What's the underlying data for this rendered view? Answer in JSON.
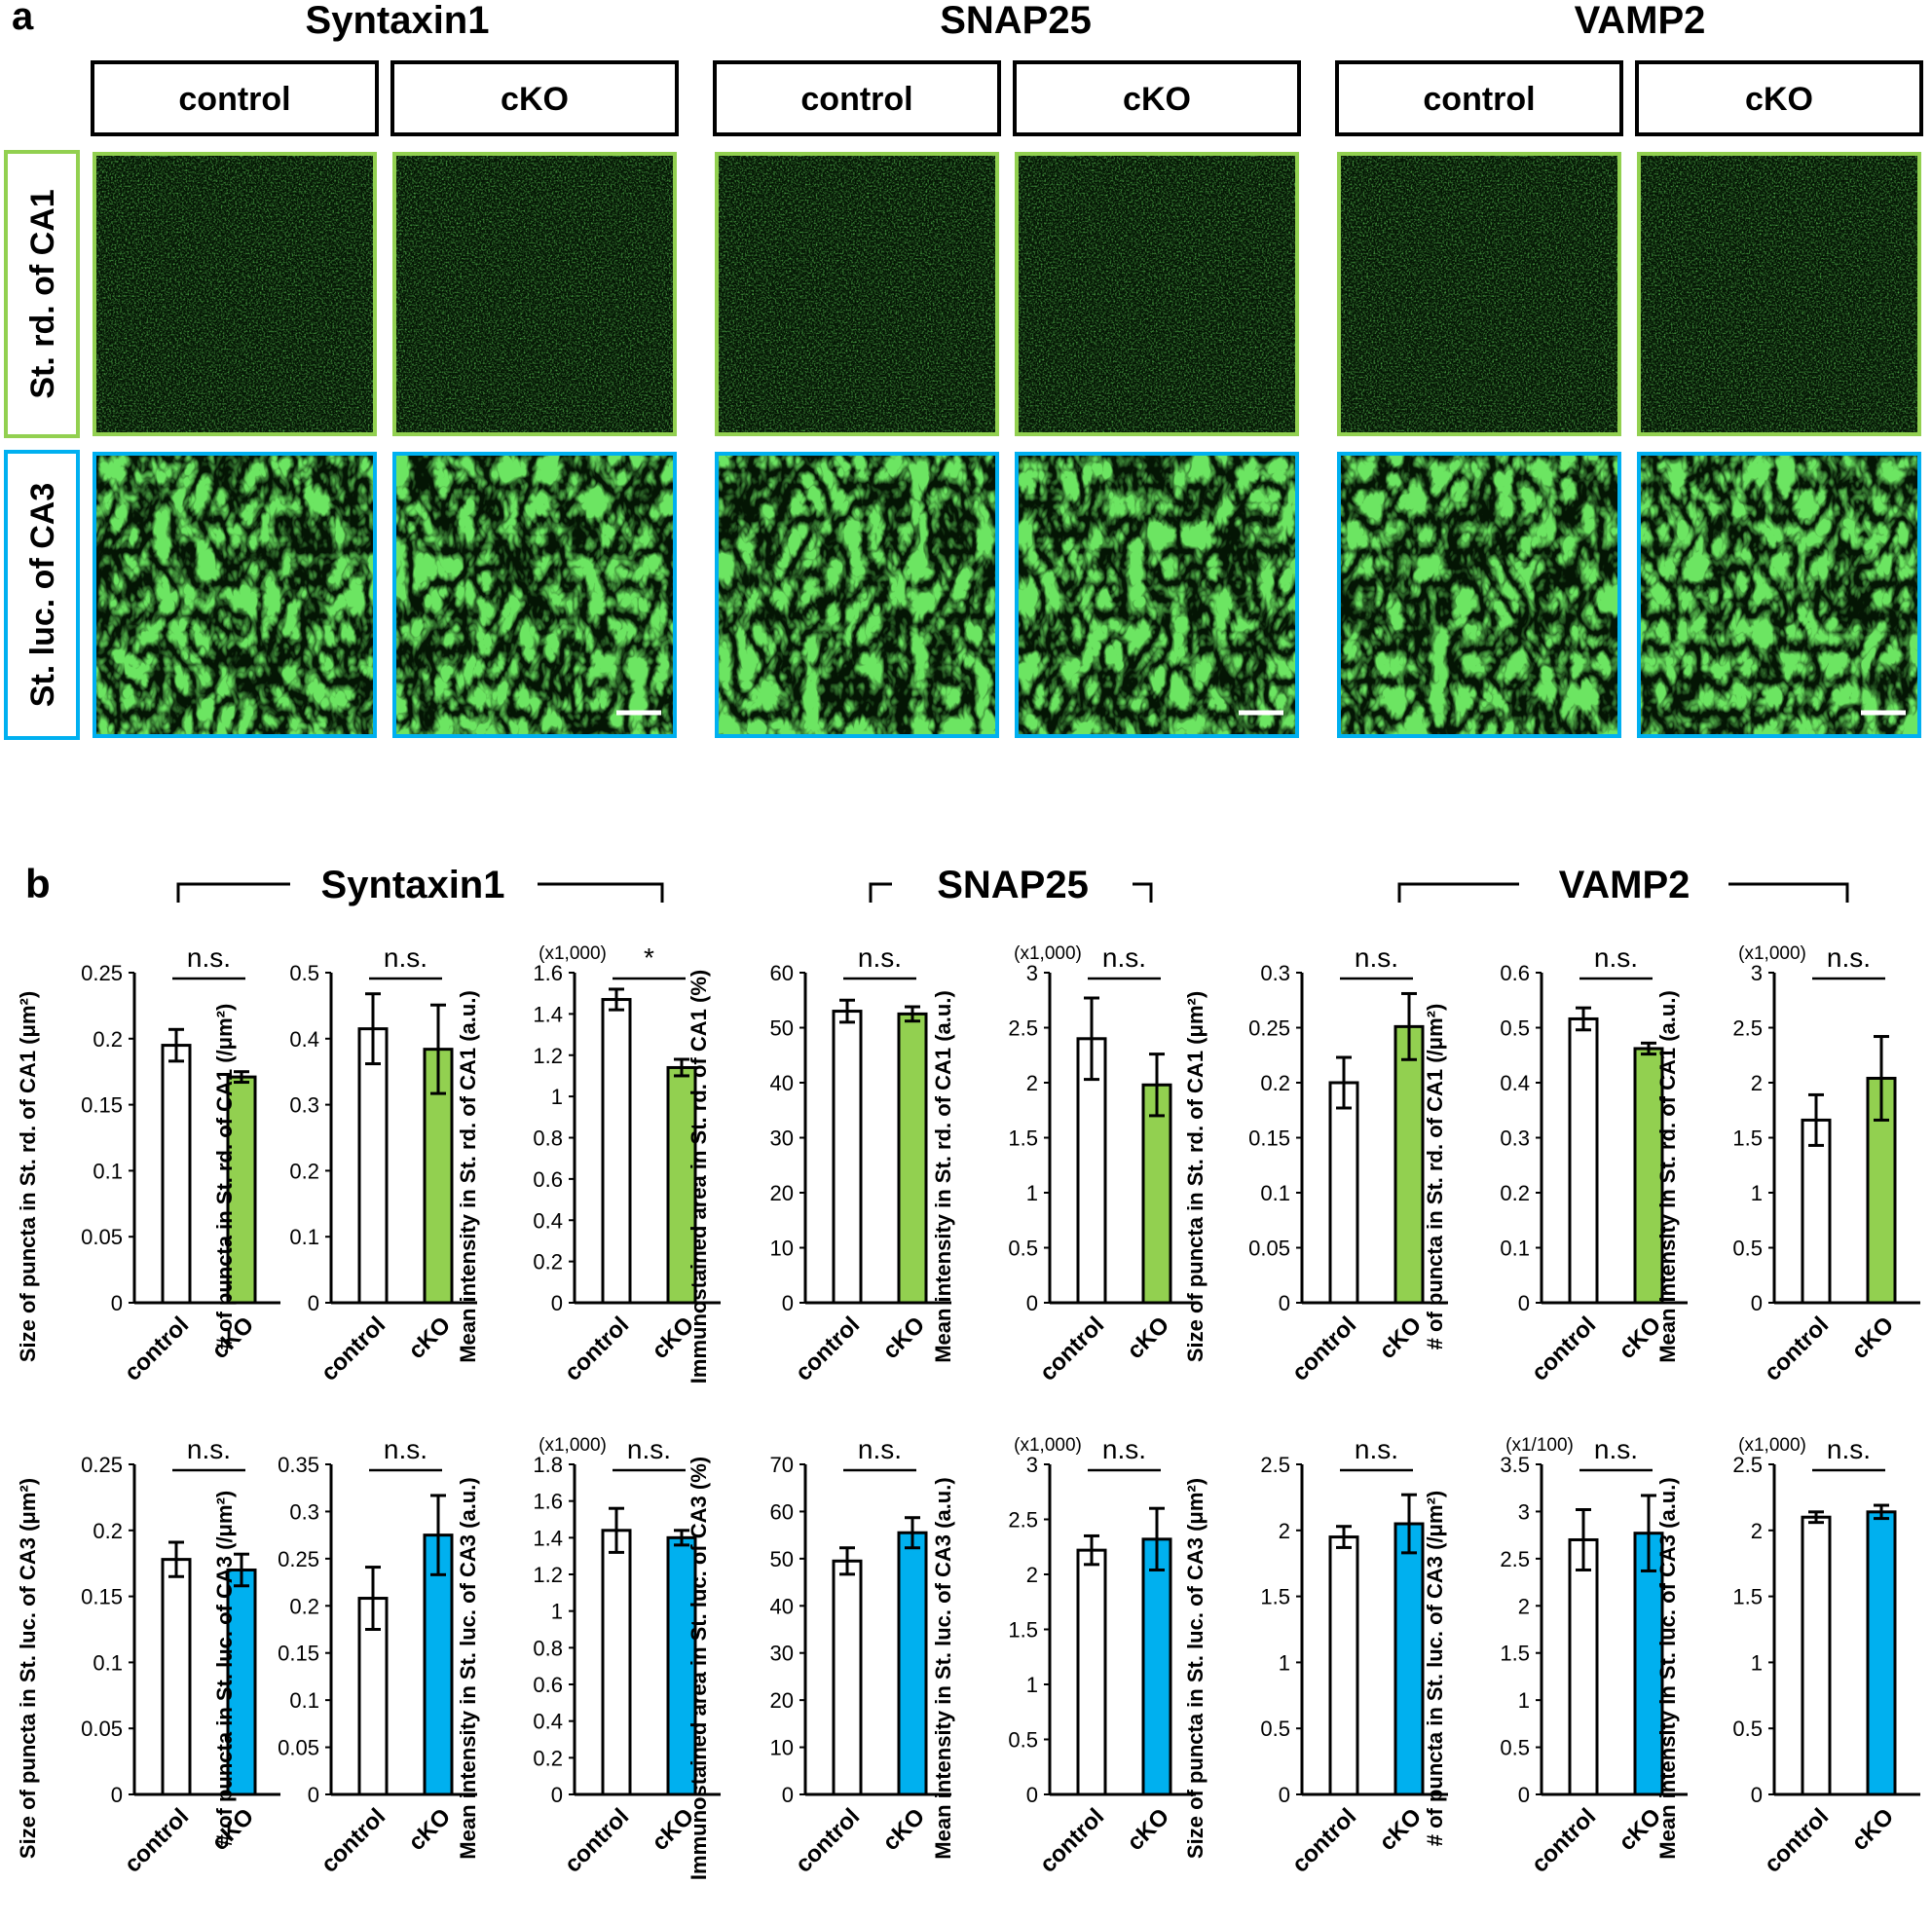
{
  "panel_a": {
    "label": "a",
    "groups": [
      {
        "title": "Syntaxin1",
        "conditions": [
          "control",
          "cKO"
        ]
      },
      {
        "title": "SNAP25",
        "conditions": [
          "control",
          "cKO"
        ]
      },
      {
        "title": "VAMP2",
        "conditions": [
          "control",
          "cKO"
        ]
      }
    ],
    "rows": [
      {
        "label": "St. rd. of CA1",
        "border_color": "#92d050"
      },
      {
        "label": "St. luc. of CA3",
        "border_color": "#00b0f0"
      }
    ],
    "image_color": "#1e8c1e"
  },
  "panel_b": {
    "label": "b",
    "groups": [
      "Syntaxin1",
      "SNAP25",
      "VAMP2"
    ]
  },
  "colors": {
    "control": "#ffffff",
    "ca1": "#92d050",
    "ca3": "#00b0ef"
  },
  "chart_data": [
    {
      "type": "bar",
      "categories": [
        "control",
        "cKO"
      ],
      "values": [
        0.195,
        0.171
      ],
      "errors": [
        0.012,
        0.004
      ],
      "ylabel": "Size of puncta in St. rd. of CA1 (μm²)",
      "ylim": [
        0,
        0.25
      ],
      "ticks": [
        "0",
        "0.05",
        "0.1",
        "0.15",
        "0.2",
        "0.25"
      ],
      "multiplier": "",
      "significance": "n.s.",
      "region": "CA1"
    },
    {
      "type": "bar",
      "categories": [
        "control",
        "cKO"
      ],
      "values": [
        0.415,
        0.384
      ],
      "errors": [
        0.053,
        0.067
      ],
      "ylabel": "# of puncta in St. rd. of CA1 (/μm²)",
      "ylim": [
        0,
        0.5
      ],
      "ticks": [
        "0",
        "0.1",
        "0.2",
        "0.3",
        "0.4",
        "0.5"
      ],
      "multiplier": "",
      "significance": "n.s.",
      "region": "CA1"
    },
    {
      "type": "bar",
      "categories": [
        "control",
        "cKO"
      ],
      "values": [
        1.47,
        1.14
      ],
      "errors": [
        0.05,
        0.04
      ],
      "ylabel": "Mean intensity in St. rd. of CA1 (a.u.)",
      "ylim": [
        0,
        1.6
      ],
      "ticks": [
        "0",
        "0.2",
        "0.4",
        "0.6",
        "0.8",
        "1",
        "1.2",
        "1.4",
        "1.6"
      ],
      "multiplier": "(x1,000)",
      "significance": "*",
      "region": "CA1"
    },
    {
      "type": "bar",
      "categories": [
        "control",
        "cKO"
      ],
      "values": [
        53,
        52.5
      ],
      "errors": [
        2,
        1.3
      ],
      "ylabel": "Immunostained area in St. rd. of CA1 (%)",
      "ylim": [
        0,
        60
      ],
      "ticks": [
        "0",
        "10",
        "20",
        "30",
        "40",
        "50",
        "60"
      ],
      "multiplier": "",
      "significance": "n.s.",
      "region": "CA1"
    },
    {
      "type": "bar",
      "categories": [
        "control",
        "cKO"
      ],
      "values": [
        2.4,
        1.98
      ],
      "errors": [
        0.37,
        0.28
      ],
      "ylabel": "Mean intensity in St. rd. of CA1 (a.u.)",
      "ylim": [
        0,
        3
      ],
      "ticks": [
        "0",
        "0.5",
        "1",
        "1.5",
        "2",
        "2.5",
        "3"
      ],
      "multiplier": "(x1,000)",
      "significance": "n.s.",
      "region": "CA1"
    },
    {
      "type": "bar",
      "categories": [
        "control",
        "cKO"
      ],
      "values": [
        0.2,
        0.251
      ],
      "errors": [
        0.023,
        0.03
      ],
      "ylabel": "Size of puncta in St. rd. of CA1 (μm²)",
      "ylim": [
        0,
        0.3
      ],
      "ticks": [
        "0",
        "0.05",
        "0.1",
        "0.15",
        "0.2",
        "0.25",
        "0.3"
      ],
      "multiplier": "",
      "significance": "n.s.",
      "region": "CA1"
    },
    {
      "type": "bar",
      "categories": [
        "control",
        "cKO"
      ],
      "values": [
        0.516,
        0.462
      ],
      "errors": [
        0.02,
        0.01
      ],
      "ylabel": "# of puncta in St. rd. of CA1 (/μm²)",
      "ylim": [
        0,
        0.6
      ],
      "ticks": [
        "0",
        "0.1",
        "0.2",
        "0.3",
        "0.4",
        "0.5",
        "0.6"
      ],
      "multiplier": "",
      "significance": "n.s.",
      "region": "CA1"
    },
    {
      "type": "bar",
      "categories": [
        "control",
        "cKO"
      ],
      "values": [
        1.66,
        2.04
      ],
      "errors": [
        0.23,
        0.38
      ],
      "ylabel": "Mean intensity in St. rd. of CA1 (a.u.)",
      "ylim": [
        0,
        3
      ],
      "ticks": [
        "0",
        "0.5",
        "1",
        "1.5",
        "2",
        "2.5",
        "3"
      ],
      "multiplier": "(x1,000)",
      "significance": "n.s.",
      "region": "CA1"
    },
    {
      "type": "bar",
      "categories": [
        "control",
        "cKO"
      ],
      "values": [
        0.178,
        0.17
      ],
      "errors": [
        0.013,
        0.012
      ],
      "ylabel": "Size of puncta in St. luc. of CA3 (μm²)",
      "ylim": [
        0,
        0.25
      ],
      "ticks": [
        "0",
        "0.05",
        "0.1",
        "0.15",
        "0.2",
        "0.25"
      ],
      "multiplier": "",
      "significance": "n.s.",
      "region": "CA3"
    },
    {
      "type": "bar",
      "categories": [
        "control",
        "cKO"
      ],
      "values": [
        0.208,
        0.275
      ],
      "errors": [
        0.033,
        0.042
      ],
      "ylabel": "# of puncta in St. luc. of CA3 (/μm²)",
      "ylim": [
        0,
        0.35
      ],
      "ticks": [
        "0",
        "0.05",
        "0.1",
        "0.15",
        "0.2",
        "0.25",
        "0.3",
        "0.35"
      ],
      "multiplier": "",
      "significance": "n.s.",
      "region": "CA3"
    },
    {
      "type": "bar",
      "categories": [
        "control",
        "cKO"
      ],
      "values": [
        1.44,
        1.4
      ],
      "errors": [
        0.12,
        0.04
      ],
      "ylabel": "Mean intensity in St. luc. of CA3 (a.u.)",
      "ylim": [
        0,
        1.8
      ],
      "ticks": [
        "0",
        "0.2",
        "0.4",
        "0.6",
        "0.8",
        "1",
        "1.2",
        "1.4",
        "1.6",
        "1.8"
      ],
      "multiplier": "(x1,000)",
      "significance": "n.s.",
      "region": "CA3"
    },
    {
      "type": "bar",
      "categories": [
        "control",
        "cKO"
      ],
      "values": [
        49.5,
        55.5
      ],
      "errors": [
        2.8,
        3.2
      ],
      "ylabel": "Immunostained area in St. luc. of CA3 (%)",
      "ylim": [
        0,
        70
      ],
      "ticks": [
        "0",
        "10",
        "20",
        "30",
        "40",
        "50",
        "60",
        "70"
      ],
      "multiplier": "",
      "significance": "n.s.",
      "region": "CA3"
    },
    {
      "type": "bar",
      "categories": [
        "control",
        "cKO"
      ],
      "values": [
        2.22,
        2.32
      ],
      "errors": [
        0.13,
        0.28
      ],
      "ylabel": "Mean intensity in St. luc. of CA3 (a.u.)",
      "ylim": [
        0,
        3
      ],
      "ticks": [
        "0",
        "0.5",
        "1",
        "1.5",
        "2",
        "2.5",
        "3"
      ],
      "multiplier": "(x1,000)",
      "significance": "n.s.",
      "region": "CA3"
    },
    {
      "type": "bar",
      "categories": [
        "control",
        "cKO"
      ],
      "values": [
        1.95,
        2.05
      ],
      "errors": [
        0.08,
        0.22
      ],
      "ylabel": "Size of puncta in St. luc. of CA3 (μm²)",
      "ylim": [
        0,
        2.5
      ],
      "ticks": [
        "0",
        "0.5",
        "1",
        "1.5",
        "2",
        "2.5"
      ],
      "multiplier": "",
      "significance": "n.s.",
      "region": "CA3"
    },
    {
      "type": "bar",
      "categories": [
        "control",
        "cKO"
      ],
      "values": [
        2.7,
        2.77
      ],
      "errors": [
        0.32,
        0.4
      ],
      "ylabel": "# of puncta in St. luc. of CA3 (/μm²)",
      "ylim": [
        0,
        3.5
      ],
      "ticks": [
        "0",
        "0.5",
        "1",
        "1.5",
        "2",
        "2.5",
        "3",
        "3.5"
      ],
      "multiplier": "(x1/100)",
      "significance": "n.s.",
      "region": "CA3"
    },
    {
      "type": "bar",
      "categories": [
        "control",
        "cKO"
      ],
      "values": [
        2.1,
        2.14
      ],
      "errors": [
        0.04,
        0.05
      ],
      "ylabel": "Mean intensity in St. luc. of CA3 (a.u.)",
      "ylim": [
        0,
        2.5
      ],
      "ticks": [
        "0",
        "0.5",
        "1",
        "1.5",
        "2",
        "2.5"
      ],
      "multiplier": "(x1,000)",
      "significance": "n.s.",
      "region": "CA3"
    }
  ]
}
